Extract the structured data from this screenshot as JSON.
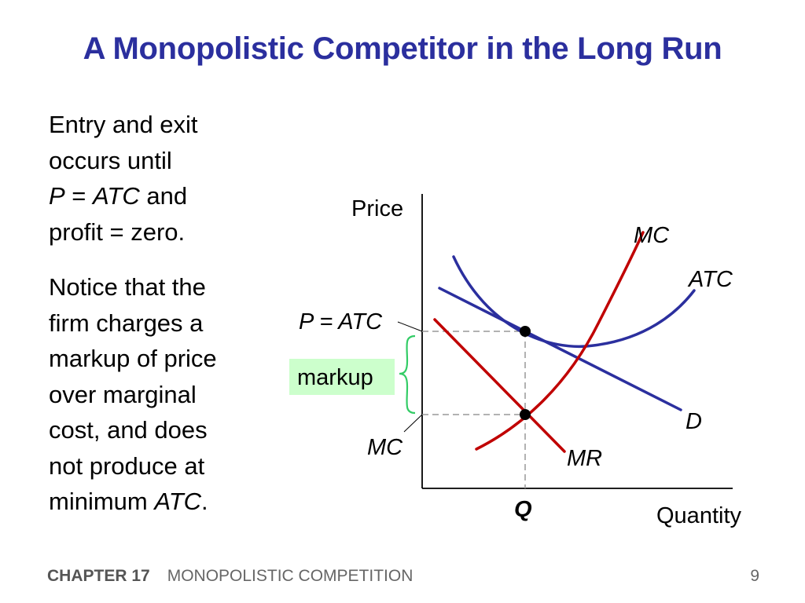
{
  "slide": {
    "title": "A Monopolistic Competitor in the Long Run"
  },
  "text": {
    "p1_line1": "Entry and exit",
    "p1_line2": "occurs until",
    "p1_P": "P",
    "p1_eq": " = ",
    "p1_ATC": "ATC",
    "p1_and": " and",
    "p1_line4": "profit = zero.",
    "p2_line1": "Notice that the",
    "p2_line2": "firm charges a",
    "p2_line3": "markup of price",
    "p2_line4": "over marginal",
    "p2_line5": "cost, and does",
    "p2_line6": "not produce at",
    "p2_line7a": "minimum ",
    "p2_line7b": "ATC",
    "p2_line7c": "."
  },
  "diagram": {
    "y_axis_label": "Price",
    "x_axis_label": "Quantity",
    "mc_label": "MC",
    "atc_label": "ATC",
    "d_label": "D",
    "mr_label": "MR",
    "p_atc_label": "P = ATC",
    "mc_price_label": "MC",
    "q_label": "Q",
    "markup_label": "markup",
    "colors": {
      "cost_curves": "#c00000",
      "demand_curves": "#2b2f9e",
      "markup_box": "#ccffcc",
      "brace": "#33cc66",
      "guides": "#999999"
    }
  },
  "footer": {
    "chapter": "CHAPTER 17",
    "section": "MONOPOLISTIC COMPETITION",
    "page": "9"
  }
}
